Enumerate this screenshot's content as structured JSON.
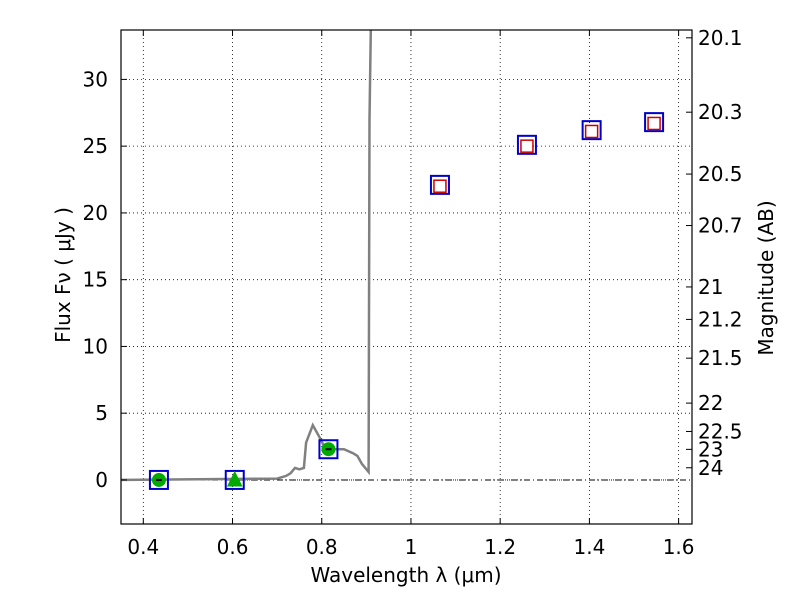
{
  "chart_data": {
    "type": "line",
    "xlabel": "Wavelength  λ (μm)",
    "ylabel": "Flux  Fν  ( μJy )",
    "y2label": "Magnitude (AB)",
    "xlim": [
      0.35,
      1.63
    ],
    "ylim": [
      -3.3,
      33.7
    ],
    "xticks": [
      0.4,
      0.6,
      0.8,
      1.0,
      1.2,
      1.4,
      1.6
    ],
    "xtick_labels": [
      "0.4",
      "0.6",
      "0.8",
      "1",
      "1.2",
      "1.4",
      "1.6"
    ],
    "yticks": [
      0,
      5,
      10,
      15,
      20,
      25,
      30
    ],
    "ytick_labels": [
      "0",
      "5",
      "10",
      "15",
      "20",
      "25",
      "30"
    ],
    "mag_ticks": [
      20.1,
      20.3,
      20.5,
      20.7,
      21,
      21.2,
      21.5,
      22,
      22.5,
      23,
      24
    ],
    "mag_tick_labels": [
      "20.1",
      "20.3",
      "20.5",
      "20.7",
      "21",
      "21.2",
      "21.5",
      "22",
      "22.5",
      "23",
      "24"
    ],
    "grid": true,
    "colors": {
      "model": "#808080",
      "observed_square": "#0000cc",
      "model_square": "#cc0000",
      "dropout_marker": "#00aa00",
      "zero_line": "#000000"
    },
    "model_spectrum": {
      "x": [
        0.35,
        0.7,
        0.72,
        0.73,
        0.74,
        0.75,
        0.76,
        0.765,
        0.78,
        0.795,
        0.81,
        0.83,
        0.85,
        0.87,
        0.88,
        0.89,
        0.905,
        0.907,
        0.91
      ],
      "y": [
        0.0,
        0.1,
        0.3,
        0.5,
        0.9,
        0.8,
        0.9,
        2.8,
        4.1,
        3.2,
        2.2,
        2.3,
        2.3,
        2.0,
        1.8,
        1.2,
        0.6,
        27.0,
        34.0
      ]
    },
    "observed_points": {
      "x": [
        0.435,
        0.605,
        0.815,
        1.065,
        1.26,
        1.405,
        1.545
      ],
      "y": [
        0.0,
        0.0,
        2.3,
        22.1,
        25.1,
        26.2,
        26.8
      ]
    },
    "model_points": {
      "x": [
        1.065,
        1.26,
        1.405,
        1.545
      ],
      "y": [
        22.0,
        25.0,
        26.1,
        26.7
      ]
    },
    "detections": {
      "x": [
        0.435,
        0.815
      ],
      "y": [
        0.0,
        2.3
      ]
    },
    "nondetection": {
      "x": [
        0.605
      ],
      "y": [
        0.0
      ]
    }
  }
}
